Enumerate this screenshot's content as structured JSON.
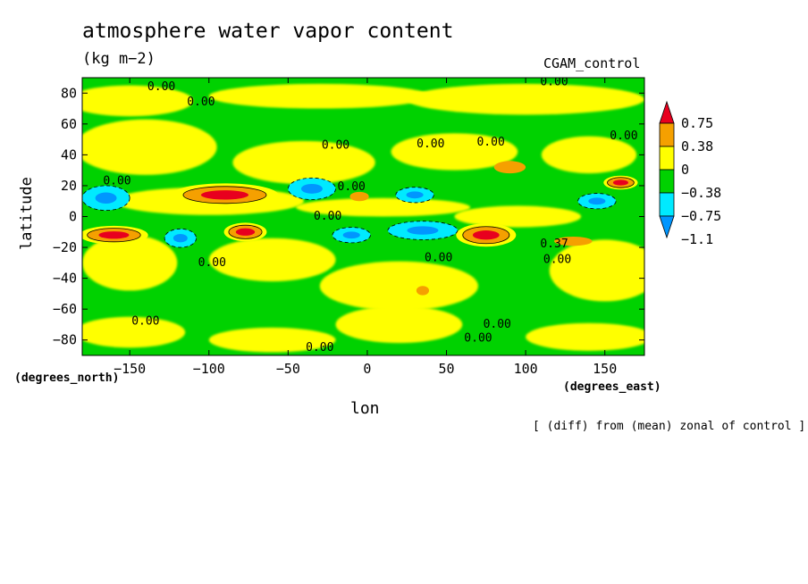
{
  "chart_data": {
    "type": "heatmap",
    "title": "atmosphere water vapor content",
    "units": "(kg m−2)",
    "dataset": "CGAM_control",
    "xlabel": "lon",
    "ylabel": "latitude",
    "x_unit_label": "(degrees_east)",
    "y_unit_label": "(degrees_north)",
    "note": "[ (diff) from (mean) zonal of control ]",
    "xlim": [
      -180,
      175
    ],
    "ylim": [
      -90,
      90
    ],
    "x_ticks": [
      -150,
      -100,
      -50,
      0,
      50,
      100,
      150
    ],
    "x_tick_labels": [
      "−150",
      "−100",
      "−50",
      "0",
      "50",
      "100",
      "150"
    ],
    "y_ticks": [
      -80,
      -60,
      -40,
      -20,
      0,
      20,
      40,
      60,
      80
    ],
    "y_tick_labels": [
      "−80",
      "−60",
      "−40",
      "−20",
      "0",
      "20",
      "40",
      "60",
      "80"
    ],
    "colorbar": {
      "labels": [
        "0.75",
        "0.38",
        "0",
        "−0.38",
        "−0.75",
        "−1.1"
      ],
      "colors": [
        "#e8001e",
        "#f5a000",
        "#ffff00",
        "#00d200",
        "#00eaff",
        "#0096ff"
      ]
    },
    "contour_labels": [
      {
        "text": "0.00",
        "lon": -130,
        "lat": 84
      },
      {
        "text": "0.00",
        "lon": -105,
        "lat": 74
      },
      {
        "text": "0.00",
        "lon": 118,
        "lat": 87
      },
      {
        "text": "0.00",
        "lon": -20,
        "lat": 46
      },
      {
        "text": "0.00",
        "lon": 40,
        "lat": 47
      },
      {
        "text": "0.00",
        "lon": 78,
        "lat": 48
      },
      {
        "text": "0.00",
        "lon": 162,
        "lat": 52
      },
      {
        "text": "0.00",
        "lon": -158,
        "lat": 23
      },
      {
        "text": "0.00",
        "lon": -10,
        "lat": 19
      },
      {
        "text": "0.00",
        "lon": -25,
        "lat": 0
      },
      {
        "text": "0.00",
        "lon": -98,
        "lat": -30
      },
      {
        "text": "0.00",
        "lon": 45,
        "lat": -27
      },
      {
        "text": "0.37",
        "lon": 118,
        "lat": -18
      },
      {
        "text": "0.00",
        "lon": 120,
        "lat": -28
      },
      {
        "text": "0.00",
        "lon": -140,
        "lat": -68
      },
      {
        "text": "0.00",
        "lon": -30,
        "lat": -85
      },
      {
        "text": "0.00",
        "lon": 82,
        "lat": -70
      },
      {
        "text": "0.00",
        "lon": 70,
        "lat": -79
      }
    ],
    "features": [
      {
        "value": "positive",
        "lon": -160,
        "lat": -12,
        "rx": 16,
        "ry": 4
      },
      {
        "value": "positive",
        "lon": -90,
        "lat": 14,
        "rx": 25,
        "ry": 5
      },
      {
        "value": "positive",
        "lon": -77,
        "lat": -10,
        "rx": 10,
        "ry": 4
      },
      {
        "value": "positive",
        "lon": 75,
        "lat": -12,
        "rx": 14,
        "ry": 5
      },
      {
        "value": "positive",
        "lon": 160,
        "lat": 22,
        "rx": 8,
        "ry": 3
      },
      {
        "value": "negative",
        "lon": -165,
        "lat": 12,
        "rx": 15,
        "ry": 8
      },
      {
        "value": "negative",
        "lon": -35,
        "lat": 18,
        "rx": 15,
        "ry": 7
      },
      {
        "value": "negative",
        "lon": -10,
        "lat": -12,
        "rx": 12,
        "ry": 5
      },
      {
        "value": "negative",
        "lon": -118,
        "lat": -14,
        "rx": 10,
        "ry": 6
      },
      {
        "value": "negative",
        "lon": 35,
        "lat": -9,
        "rx": 22,
        "ry": 6
      },
      {
        "value": "negative",
        "lon": 30,
        "lat": 14,
        "rx": 12,
        "ry": 5
      },
      {
        "value": "negative",
        "lon": 145,
        "lat": 10,
        "rx": 12,
        "ry": 5
      }
    ]
  }
}
